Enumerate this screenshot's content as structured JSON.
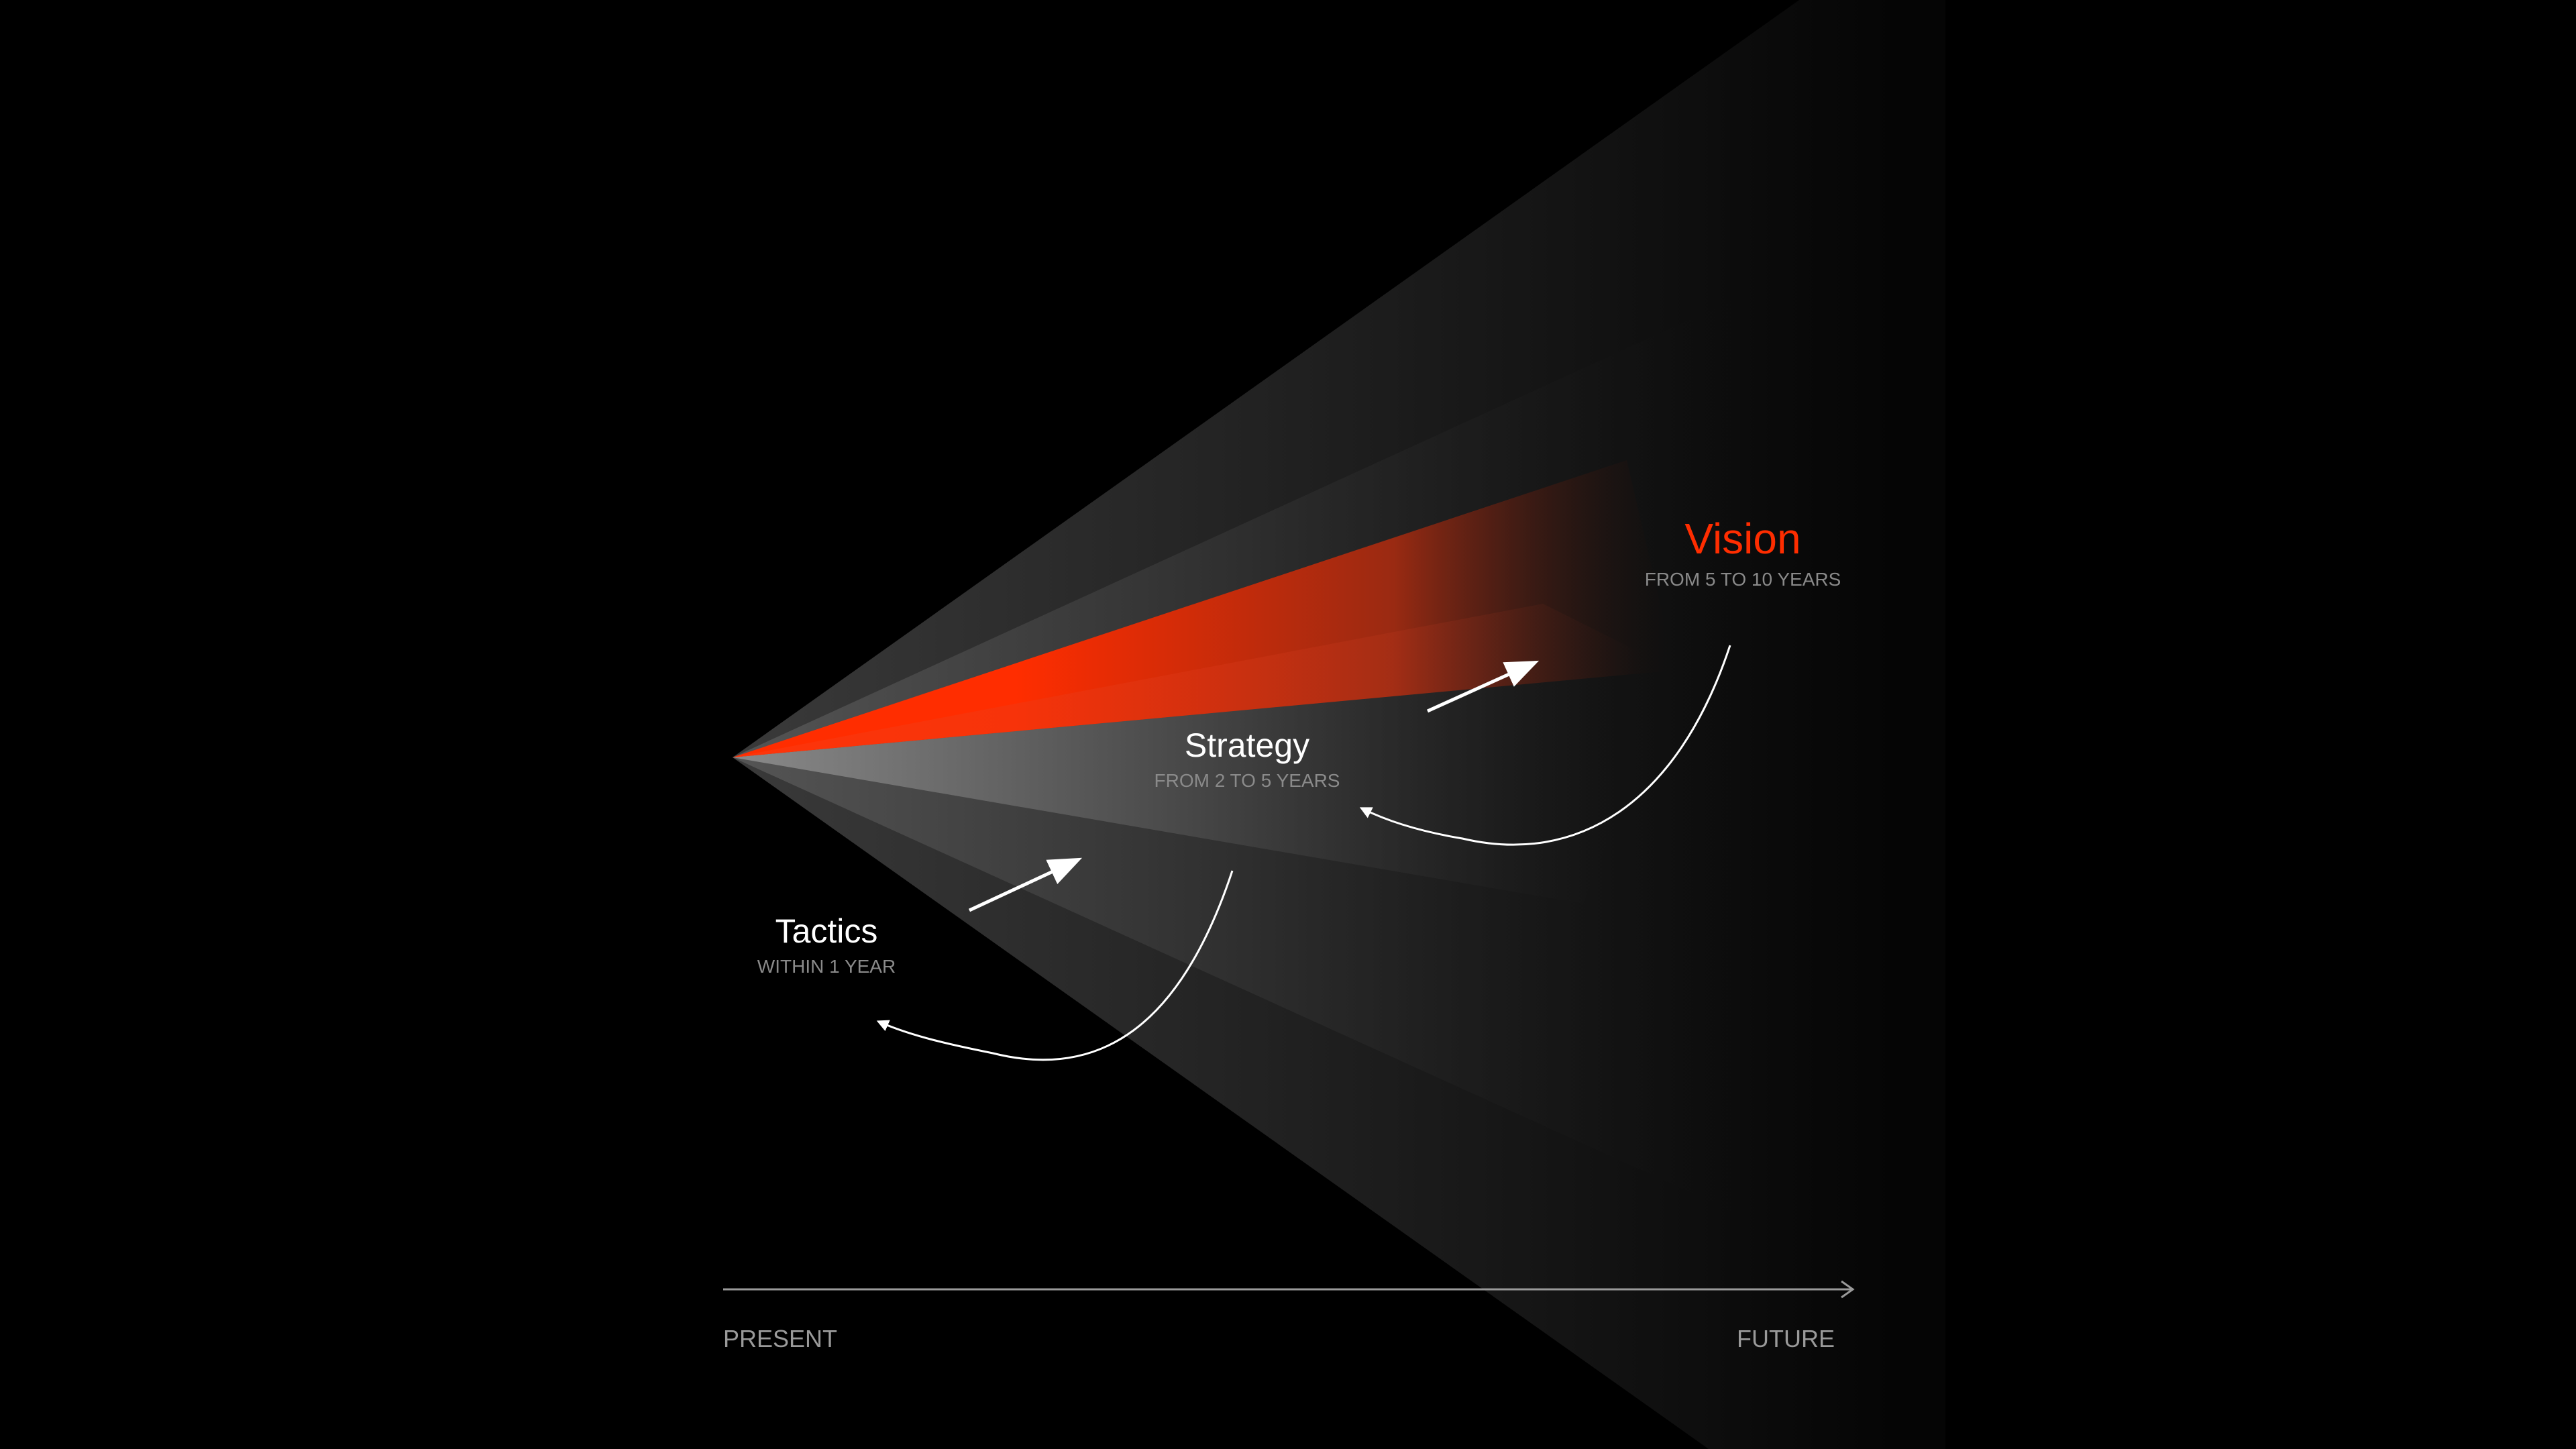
{
  "colors": {
    "background": "#000000",
    "accent": "#ff2d00",
    "text": "#ffffff",
    "muted": "#8a8a8a"
  },
  "vision": {
    "title": "Vision",
    "subtitle": "FROM 5 TO 10 YEARS"
  },
  "strategy": {
    "title": "Strategy",
    "subtitle": "FROM 2 TO 5 YEARS"
  },
  "tactics": {
    "title": "Tactics",
    "subtitle": "WITHIN 1 YEAR"
  },
  "axis": {
    "start_label": "PRESENT",
    "end_label": "FUTURE"
  }
}
